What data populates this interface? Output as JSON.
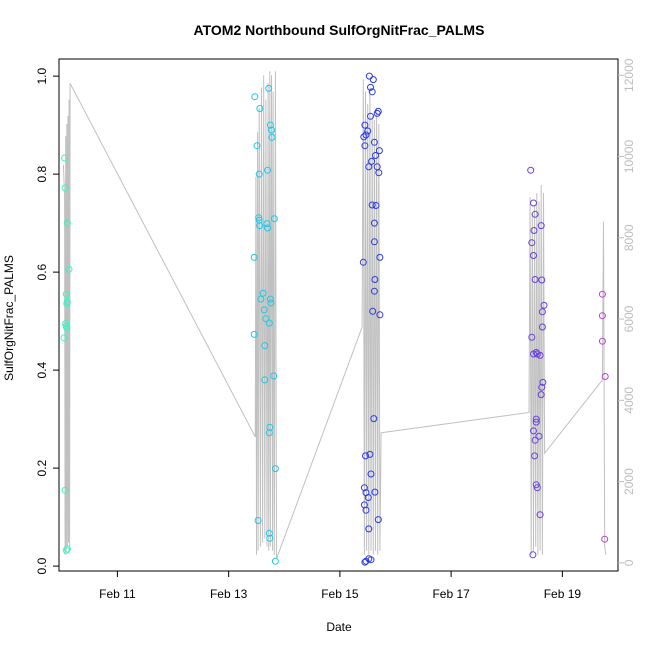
{
  "chart_data": {
    "type": "scatter",
    "title": "ATOM2 Northbound SulfOrgNitFrac_PALMS",
    "xlabel": "Date",
    "ylabel": "SulfOrgNitFrac_PALMS",
    "x_ticks": [
      {
        "label": "Feb 11",
        "value": 11
      },
      {
        "label": "Feb 13",
        "value": 13
      },
      {
        "label": "Feb 15",
        "value": 15
      },
      {
        "label": "Feb 17",
        "value": 17
      },
      {
        "label": "Feb 19",
        "value": 19
      }
    ],
    "xlim": [
      9.95,
      20.0
    ],
    "ylim": [
      -0.01,
      1.035
    ],
    "y_ticks": [
      "0.0",
      "0.2",
      "0.4",
      "0.6",
      "0.8",
      "1.0"
    ],
    "y2_ticks": [
      "0",
      "2000",
      "4000",
      "6000",
      "8000",
      "10000",
      "12000"
    ],
    "y2lim": [
      -200,
      12400
    ],
    "grid": false,
    "colors": {
      "altitude_line": "#c0c0c0",
      "axis": "#000000",
      "secondary_axis": "#bdbdbd"
    },
    "series": [
      {
        "color": "#3ef2c4",
        "points": [
          [
            10.05,
            0.833
          ],
          [
            10.06,
            0.772
          ],
          [
            10.04,
            0.466
          ],
          [
            10.08,
            0.49
          ],
          [
            10.07,
            0.495
          ],
          [
            10.09,
            0.486
          ],
          [
            10.1,
            0.7
          ],
          [
            10.08,
            0.555
          ],
          [
            10.09,
            0.536
          ],
          [
            10.1,
            0.54
          ],
          [
            10.13,
            0.606
          ],
          [
            10.06,
            0.155
          ],
          [
            10.08,
            0.032
          ],
          [
            10.1,
            0.035
          ]
        ]
      },
      {
        "color": "#20c8e6",
        "points": [
          [
            13.47,
            0.958
          ],
          [
            13.72,
            0.975
          ],
          [
            13.56,
            0.934
          ],
          [
            13.75,
            0.9
          ],
          [
            13.77,
            0.89
          ],
          [
            13.78,
            0.875
          ],
          [
            13.51,
            0.858
          ],
          [
            13.7,
            0.808
          ],
          [
            13.55,
            0.8
          ],
          [
            13.54,
            0.711
          ],
          [
            13.55,
            0.706
          ],
          [
            13.56,
            0.695
          ],
          [
            13.69,
            0.699
          ],
          [
            13.7,
            0.69
          ],
          [
            13.82,
            0.709
          ],
          [
            13.46,
            0.63
          ],
          [
            13.62,
            0.557
          ],
          [
            13.58,
            0.545
          ],
          [
            13.75,
            0.545
          ],
          [
            13.76,
            0.537
          ],
          [
            13.64,
            0.523
          ],
          [
            13.67,
            0.505
          ],
          [
            13.73,
            0.496
          ],
          [
            13.46,
            0.473
          ],
          [
            13.65,
            0.45
          ],
          [
            13.81,
            0.388
          ],
          [
            13.65,
            0.38
          ],
          [
            13.74,
            0.283
          ],
          [
            13.73,
            0.272
          ],
          [
            13.84,
            0.199
          ],
          [
            13.53,
            0.093
          ],
          [
            13.73,
            0.067
          ],
          [
            13.74,
            0.057
          ],
          [
            13.84,
            0.01
          ]
        ]
      },
      {
        "color": "#2a3be8",
        "points": [
          [
            15.53,
            1.0
          ],
          [
            15.6,
            0.993
          ],
          [
            15.55,
            0.977
          ],
          [
            15.58,
            0.968
          ],
          [
            15.55,
            0.918
          ],
          [
            15.69,
            0.928
          ],
          [
            15.67,
            0.924
          ],
          [
            15.45,
            0.9
          ],
          [
            15.5,
            0.888
          ],
          [
            15.47,
            0.88
          ],
          [
            15.43,
            0.876
          ],
          [
            15.62,
            0.865
          ],
          [
            15.45,
            0.858
          ],
          [
            15.71,
            0.848
          ],
          [
            15.64,
            0.838
          ],
          [
            15.57,
            0.826
          ],
          [
            15.52,
            0.815
          ],
          [
            15.67,
            0.815
          ],
          [
            15.7,
            0.803
          ],
          [
            15.58,
            0.737
          ],
          [
            15.65,
            0.736
          ],
          [
            15.62,
            0.7
          ],
          [
            15.62,
            0.662
          ],
          [
            15.72,
            0.63
          ],
          [
            15.42,
            0.62
          ],
          [
            15.63,
            0.585
          ],
          [
            15.62,
            0.561
          ],
          [
            15.59,
            0.52
          ],
          [
            15.72,
            0.513
          ],
          [
            15.61,
            0.301
          ],
          [
            15.46,
            0.225
          ],
          [
            15.54,
            0.228
          ],
          [
            15.56,
            0.188
          ],
          [
            15.44,
            0.16
          ],
          [
            15.47,
            0.15
          ],
          [
            15.63,
            0.151
          ],
          [
            15.51,
            0.14
          ],
          [
            15.44,
            0.125
          ],
          [
            15.47,
            0.114
          ],
          [
            15.69,
            0.095
          ],
          [
            15.52,
            0.076
          ],
          [
            15.52,
            0.015
          ],
          [
            15.56,
            0.013
          ],
          [
            15.47,
            0.01
          ],
          [
            15.45,
            0.008
          ]
        ]
      },
      {
        "color": "#6a3fe0",
        "points": [
          [
            18.43,
            0.808
          ],
          [
            18.48,
            0.741
          ],
          [
            18.51,
            0.718
          ],
          [
            18.62,
            0.695
          ],
          [
            18.49,
            0.685
          ],
          [
            18.45,
            0.66
          ],
          [
            18.48,
            0.634
          ],
          [
            18.51,
            0.585
          ],
          [
            18.63,
            0.584
          ],
          [
            18.67,
            0.532
          ],
          [
            18.64,
            0.519
          ],
          [
            18.64,
            0.488
          ],
          [
            18.45,
            0.467
          ],
          [
            18.48,
            0.433
          ],
          [
            18.53,
            0.436
          ],
          [
            18.55,
            0.433
          ],
          [
            18.6,
            0.43
          ],
          [
            18.65,
            0.375
          ],
          [
            18.63,
            0.365
          ],
          [
            18.62,
            0.35
          ],
          [
            18.53,
            0.3
          ],
          [
            18.53,
            0.294
          ],
          [
            18.48,
            0.276
          ],
          [
            18.58,
            0.265
          ],
          [
            18.51,
            0.257
          ],
          [
            18.5,
            0.225
          ],
          [
            18.53,
            0.166
          ],
          [
            18.55,
            0.16
          ],
          [
            18.6,
            0.105
          ],
          [
            18.47,
            0.023
          ]
        ]
      },
      {
        "color": "#c23cd6",
        "points": [
          [
            19.72,
            0.555
          ],
          [
            19.72,
            0.511
          ],
          [
            19.72,
            0.459
          ],
          [
            19.77,
            0.387
          ],
          [
            19.76,
            0.055
          ]
        ]
      }
    ],
    "altitude_series": {
      "axis": "secondary",
      "x": [
        10.03,
        10.05,
        10.06,
        10.07,
        10.08,
        10.09,
        10.1,
        10.11,
        10.12,
        10.13,
        10.14,
        10.15,
        13.48,
        13.49,
        13.5,
        13.52,
        13.53,
        13.55,
        13.57,
        13.59,
        13.61,
        13.63,
        13.65,
        13.67,
        13.69,
        13.71,
        13.72,
        13.74,
        13.75,
        13.77,
        13.79,
        13.8,
        13.82,
        13.84,
        13.86,
        15.4,
        15.42,
        15.44,
        15.46,
        15.48,
        15.5,
        15.52,
        15.54,
        15.56,
        15.58,
        15.6,
        15.62,
        15.64,
        15.66,
        15.68,
        15.7,
        15.72,
        15.74,
        18.4,
        18.42,
        18.44,
        18.46,
        18.48,
        18.5,
        18.52,
        18.54,
        18.56,
        18.58,
        18.6,
        18.62,
        18.64,
        18.66,
        18.68,
        19.72,
        19.74,
        19.76,
        19.78
      ],
      "y": [
        9800,
        9000,
        200,
        10500,
        300,
        10800,
        400,
        11000,
        500,
        11400,
        300,
        11800,
        3100,
        9500,
        200,
        10600,
        300,
        11200,
        400,
        11700,
        500,
        12000,
        600,
        11400,
        400,
        11800,
        300,
        12100,
        400,
        12000,
        300,
        11600,
        200,
        12100,
        100,
        5800,
        11900,
        200,
        11600,
        300,
        11300,
        200,
        11700,
        300,
        11000,
        200,
        10900,
        300,
        11200,
        200,
        10800,
        300,
        3200,
        3700,
        9000,
        200,
        8600,
        300,
        8800,
        400,
        9100,
        200,
        8900,
        300,
        9300,
        200,
        9100,
        2700,
        4500,
        8400,
        400,
        200
      ]
    }
  }
}
